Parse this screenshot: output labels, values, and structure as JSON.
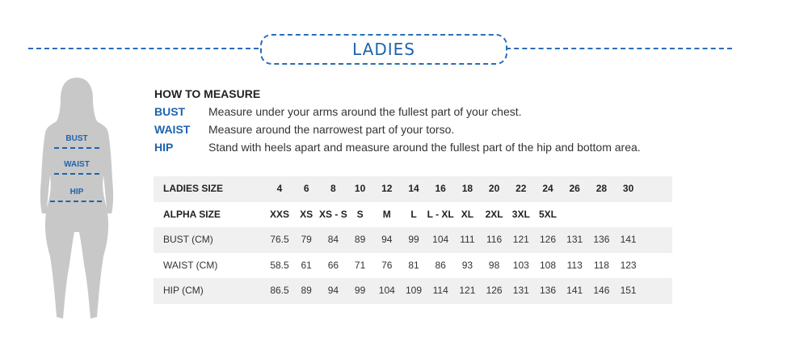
{
  "title": "LADIES",
  "figure_labels": {
    "bust": "BUST",
    "waist": "WAIST",
    "hip": "HIP"
  },
  "how_to_measure": {
    "heading": "HOW TO MEASURE",
    "items": [
      {
        "key": "BUST",
        "text": "Measure under your arms around the fullest part of your chest."
      },
      {
        "key": "WAIST",
        "text": "Measure around the narrowest part of your torso."
      },
      {
        "key": "HIP",
        "text": "Stand with heels apart and measure around the fullest part of the hip and bottom area."
      }
    ]
  },
  "colors": {
    "accent": "#1f63ad",
    "row_shade": "#f0f0f0",
    "figure": "#c8c8c8"
  },
  "size_table": {
    "rows": [
      {
        "label": "LADIES SIZE",
        "values": [
          "4",
          "6",
          "8",
          "10",
          "12",
          "14",
          "16",
          "18",
          "20",
          "22",
          "24",
          "26",
          "28",
          "30"
        ]
      },
      {
        "label": "ALPHA SIZE",
        "values": [
          "XXS",
          "XS",
          "XS - S",
          "S",
          "M",
          "L",
          "L - XL",
          "XL",
          "2XL",
          "3XL",
          "5XL",
          "",
          "",
          ""
        ]
      },
      {
        "label": "BUST (CM)",
        "values": [
          "76.5",
          "79",
          "84",
          "89",
          "94",
          "99",
          "104",
          "111",
          "116",
          "121",
          "126",
          "131",
          "136",
          "141"
        ]
      },
      {
        "label": "WAIST (CM)",
        "values": [
          "58.5",
          "61",
          "66",
          "71",
          "76",
          "81",
          "86",
          "93",
          "98",
          "103",
          "108",
          "113",
          "118",
          "123"
        ]
      },
      {
        "label": "HIP (CM)",
        "values": [
          "86.5",
          "89",
          "94",
          "99",
          "104",
          "109",
          "114",
          "121",
          "126",
          "131",
          "136",
          "141",
          "146",
          "151"
        ]
      }
    ]
  }
}
